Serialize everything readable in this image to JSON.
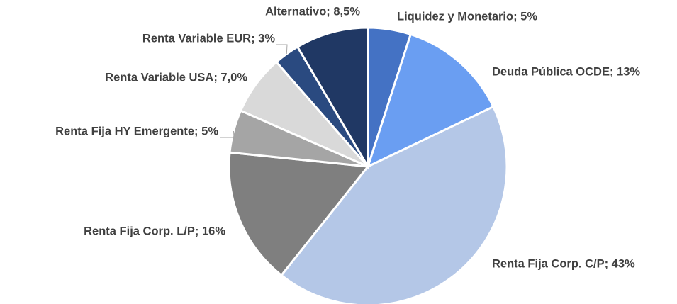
{
  "chart_data": {
    "type": "pie",
    "values": [
      5,
      13,
      43,
      16,
      5,
      7.0,
      3,
      8.5
    ],
    "value_labels": [
      "Liquidez y Monetario; 5%",
      "Deuda Pública OCDE; 13%",
      "Renta Fija Corp. C/P; 43%",
      "Renta Fija Corp. L/P; 16%",
      "Renta Fija HY Emergente; 5%",
      "Renta Variable USA; 7,0%",
      "Renta Variable EUR; 3%",
      "Alternativo; 8,5%"
    ],
    "colors": [
      "#4472c4",
      "#6a9ef2",
      "#b4c7e7",
      "#7f7f7f",
      "#a5a5a5",
      "#d9d9d9",
      "#2a4a80",
      "#203864"
    ]
  }
}
